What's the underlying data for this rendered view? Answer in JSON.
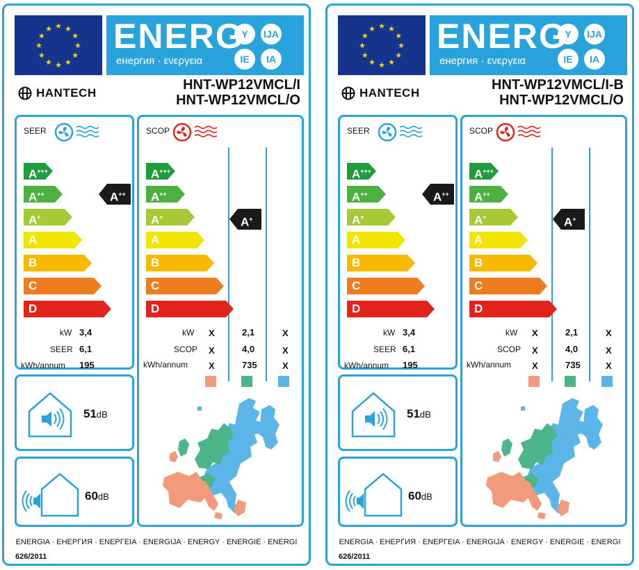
{
  "labels": [
    {
      "energ": "ENERG",
      "energ_sub": "енергия · ενεργεια",
      "circles": [
        "Y",
        "IJA",
        "IE",
        "IA"
      ],
      "brand": "HANTECH",
      "model_line1": "HNT-WP12VMCL/I",
      "model_line2": "HNT-WP12VMCL/O",
      "seer_title": "SEER",
      "scop_title": "SCOP",
      "classes": [
        {
          "letter": "A",
          "sup": "+++",
          "color": "#1f9c3d"
        },
        {
          "letter": "A",
          "sup": "++",
          "color": "#4cb140"
        },
        {
          "letter": "A",
          "sup": "+",
          "color": "#a6c936"
        },
        {
          "letter": "A",
          "sup": "",
          "color": "#f2e500"
        },
        {
          "letter": "B",
          "sup": "",
          "color": "#f9b900"
        },
        {
          "letter": "C",
          "sup": "",
          "color": "#ee7d1f"
        },
        {
          "letter": "D",
          "sup": "",
          "color": "#e3241b"
        }
      ],
      "seer_marker": {
        "letter": "A",
        "sup": "++"
      },
      "scop_marker": {
        "letter": "A",
        "sup": "+"
      },
      "seer_rows": [
        {
          "label": "kW",
          "value": "3,4"
        },
        {
          "label": "SEER",
          "value": "6,1"
        },
        {
          "label": "kWh/annum",
          "value": "195"
        }
      ],
      "scop_rows": [
        {
          "label": "kW",
          "v1": "X",
          "v2": "2,1",
          "v3": "X"
        },
        {
          "label": "SCOP",
          "v1": "X",
          "v2": "4,0",
          "v3": "X"
        },
        {
          "label": "kWh/annum",
          "v1": "X",
          "v2": "735",
          "v3": "X"
        }
      ],
      "swatch_colors": [
        "#f29a7c",
        "#4cb58a",
        "#5bb5e8"
      ],
      "indoor_db": "51",
      "outdoor_db": "60",
      "db_unit": "dB",
      "footer_langs": "ENERGIA · ЕНЕРГИЯ · ΕΝΕΡΓΕΙΑ · ENERGIJA · ENERGY · ENERGIE · ENERGI",
      "footer_reg": "626/2011"
    },
    {
      "energ": "ENERG",
      "energ_sub": "енергия · ενεργεια",
      "circles": [
        "Y",
        "IJA",
        "IE",
        "IA"
      ],
      "brand": "HANTECH",
      "model_line1": "HNT-WP12VMCL/I-B",
      "model_line2": "HNT-WP12VMCL/O",
      "seer_title": "SEER",
      "scop_title": "SCOP",
      "classes": [
        {
          "letter": "A",
          "sup": "+++",
          "color": "#1f9c3d"
        },
        {
          "letter": "A",
          "sup": "++",
          "color": "#4cb140"
        },
        {
          "letter": "A",
          "sup": "+",
          "color": "#a6c936"
        },
        {
          "letter": "A",
          "sup": "",
          "color": "#f2e500"
        },
        {
          "letter": "B",
          "sup": "",
          "color": "#f9b900"
        },
        {
          "letter": "C",
          "sup": "",
          "color": "#ee7d1f"
        },
        {
          "letter": "D",
          "sup": "",
          "color": "#e3241b"
        }
      ],
      "seer_marker": {
        "letter": "A",
        "sup": "++"
      },
      "scop_marker": {
        "letter": "A",
        "sup": "+"
      },
      "seer_rows": [
        {
          "label": "kW",
          "value": "3,4"
        },
        {
          "label": "SEER",
          "value": "6,1"
        },
        {
          "label": "kWh/annum",
          "value": "195"
        }
      ],
      "scop_rows": [
        {
          "label": "kW",
          "v1": "X",
          "v2": "2,1",
          "v3": "X"
        },
        {
          "label": "SCOP",
          "v1": "X",
          "v2": "4,0",
          "v3": "X"
        },
        {
          "label": "kWh/annum",
          "v1": "X",
          "v2": "735",
          "v3": "X"
        }
      ],
      "swatch_colors": [
        "#f29a7c",
        "#4cb58a",
        "#5bb5e8"
      ],
      "indoor_db": "51",
      "outdoor_db": "60",
      "db_unit": "dB",
      "footer_langs": "ENERGIA · ЕНЕРГИЯ · ΕΝΕΡΓΕΙΑ · ENERGIJA · ENERGY · ENERGIE · ENERGI",
      "footer_reg": "626/2011"
    }
  ]
}
